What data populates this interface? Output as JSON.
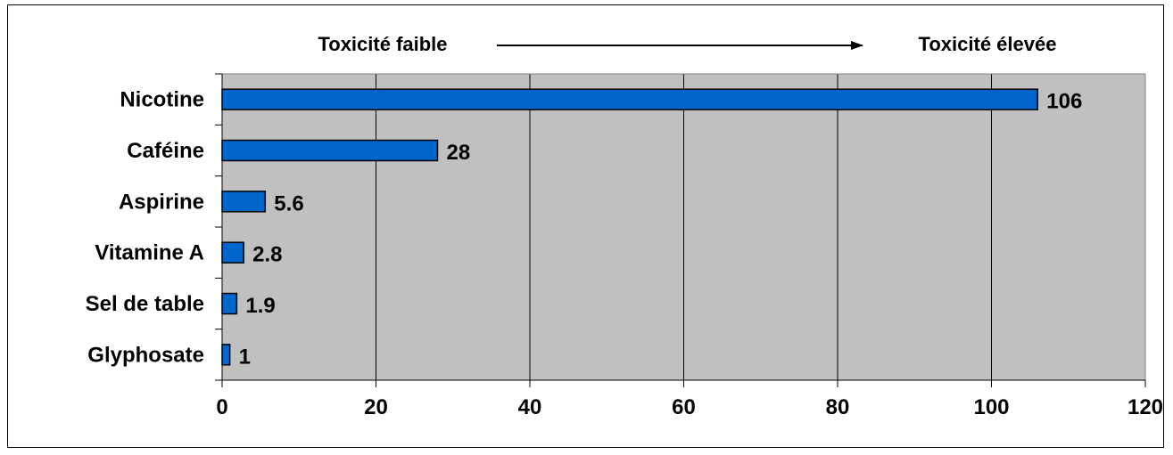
{
  "chart_data": {
    "type": "bar",
    "orientation": "horizontal",
    "categories": [
      "Nicotine",
      "Caféine",
      "Aspirine",
      "Vitamine A",
      "Sel de table",
      "Glyphosate"
    ],
    "values": [
      106,
      28,
      5.6,
      2.8,
      1.9,
      1
    ],
    "value_labels": [
      "106",
      "28",
      "5.6",
      "2.8",
      "1.9",
      "1"
    ],
    "xlim": [
      0,
      120
    ],
    "x_ticks": [
      0,
      20,
      40,
      60,
      80,
      100,
      120
    ],
    "x_tick_labels": [
      "0",
      "20",
      "40",
      "60",
      "80",
      "100",
      "120"
    ],
    "grid": "vertical",
    "title": "",
    "xlabel": "",
    "ylabel": "",
    "annotation": {
      "left_text": "Toxicité faible",
      "right_text": "Toxicité élevée",
      "arrow": "left-to-right"
    },
    "colors": {
      "bar": "#0066cc",
      "plot_background": "#c0c0c0",
      "grid": "#000000"
    }
  }
}
